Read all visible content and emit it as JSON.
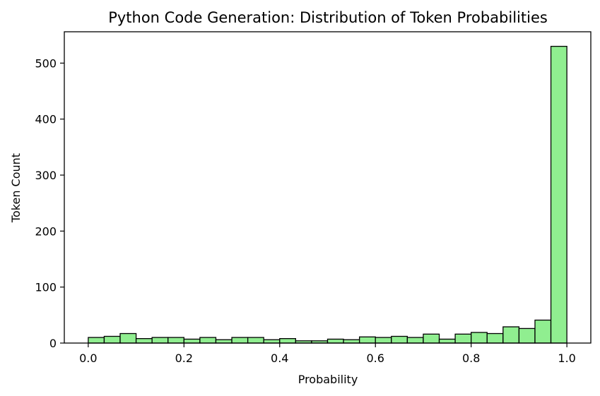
{
  "chart_data": {
    "type": "bar",
    "title": "Python Code Generation: Distribution of Token Probabilities",
    "xlabel": "Probability",
    "ylabel": "Token Count",
    "xlim": [
      -0.05,
      1.05
    ],
    "ylim": [
      0,
      556
    ],
    "xticks": [
      0.0,
      0.2,
      0.4,
      0.6,
      0.8,
      1.0
    ],
    "xtick_labels": [
      "0.0",
      "0.2",
      "0.4",
      "0.6",
      "0.8",
      "1.0"
    ],
    "yticks": [
      0,
      100,
      200,
      300,
      400,
      500
    ],
    "ytick_labels": [
      "0",
      "100",
      "200",
      "300",
      "400",
      "500"
    ],
    "bin_width": 0.033333,
    "bin_edges_start": 0.0,
    "values": [
      10,
      12,
      17,
      8,
      10,
      10,
      7,
      10,
      6,
      10,
      10,
      6,
      8,
      4,
      4,
      7,
      6,
      11,
      10,
      12,
      10,
      16,
      7,
      16,
      19,
      17,
      29,
      26,
      41,
      530
    ],
    "bar_color": "#90ee90",
    "edge_color": "#000000",
    "grid": false,
    "legend": "none"
  }
}
